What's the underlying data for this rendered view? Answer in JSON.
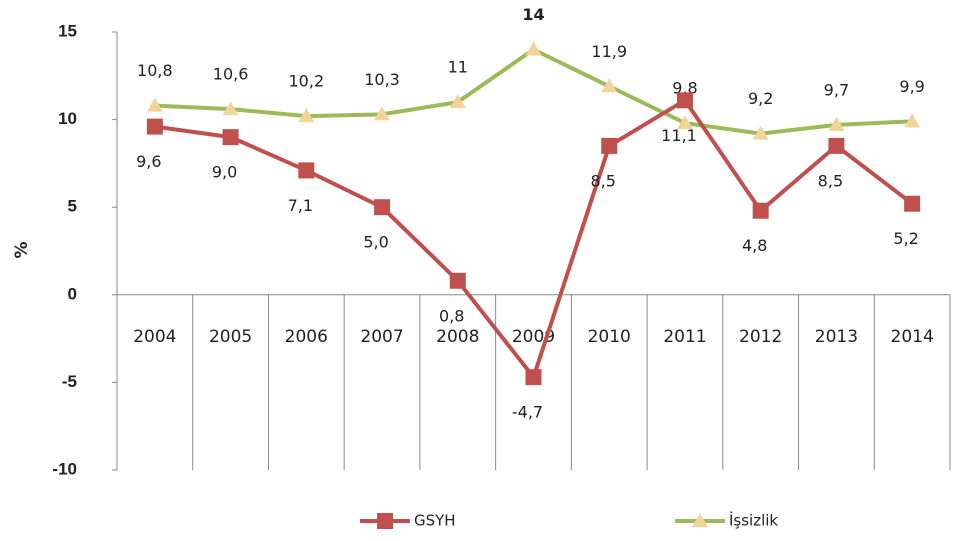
{
  "chart_data": {
    "type": "line",
    "y_label": "%",
    "categories": [
      "2004",
      "2005",
      "2006",
      "2007",
      "2008",
      "2009",
      "2010",
      "2011",
      "2012",
      "2013",
      "2014"
    ],
    "series": [
      {
        "name": "GSYH",
        "color": "#c0504d",
        "marker": "square",
        "values": [
          9.6,
          9.0,
          7.1,
          5.0,
          0.8,
          -4.7,
          8.5,
          11.1,
          4.8,
          8.5,
          5.2
        ],
        "value_labels": [
          "9,6",
          "9,0",
          "7,1",
          "5,0",
          "0,8",
          "-4,7",
          "8,5",
          "11,1",
          "4,8",
          "8,5",
          "5,2"
        ]
      },
      {
        "name": "İşsizlik",
        "color": "#9bbb59",
        "marker_color": "#f2d49b",
        "marker": "triangle",
        "values": [
          10.8,
          10.6,
          10.2,
          10.3,
          11,
          14,
          11.9,
          9.8,
          9.2,
          9.7,
          9.9
        ],
        "value_labels": [
          "10,8",
          "10,6",
          "10,2",
          "10,3",
          "11",
          "14",
          "11,9",
          "9,8",
          "9,2",
          "9,7",
          "9,9"
        ]
      }
    ],
    "ylim": [
      -10,
      15
    ],
    "yticks": [
      -10,
      -5,
      0,
      5,
      10,
      15
    ],
    "grid": false
  }
}
